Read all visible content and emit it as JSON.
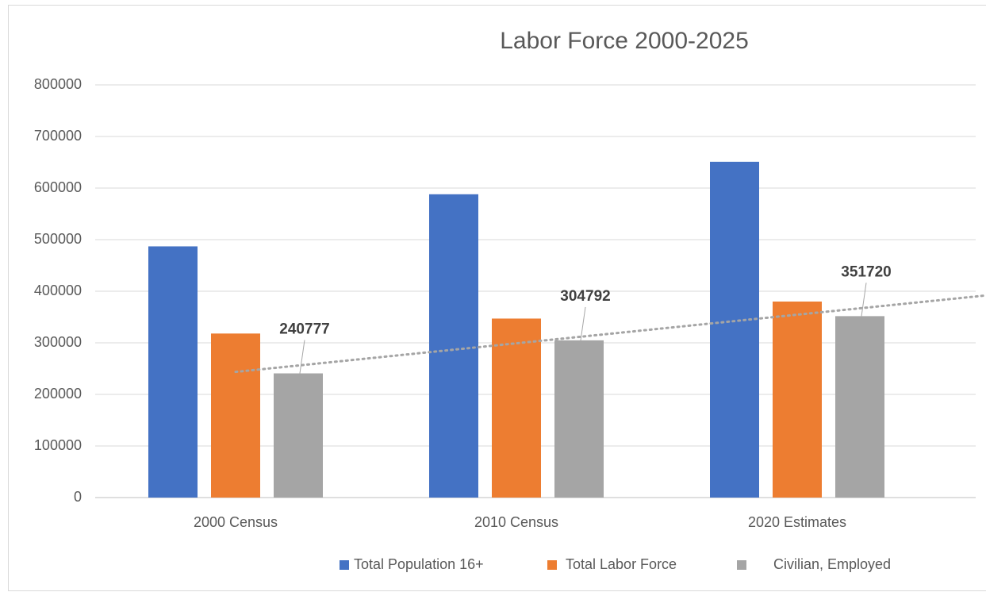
{
  "chart_data": {
    "type": "bar",
    "title": "Labor Force 2000-2025",
    "categories": [
      "2000 Census",
      "2010 Census",
      "2020 Estimates"
    ],
    "series": [
      {
        "name": "Total Population 16+",
        "color": "#4472c4",
        "values": [
          487000,
          588000,
          651000
        ]
      },
      {
        "name": "Total Labor Force",
        "color": "#ed7d31",
        "values": [
          318000,
          347000,
          380000
        ]
      },
      {
        "name": "Civilian, Employed",
        "color": "#a5a5a5",
        "values": [
          240777,
          304792,
          351720
        ],
        "data_labels": true,
        "trendline": "linear"
      }
    ],
    "ylim": [
      0,
      800000
    ],
    "yticks": [
      0,
      100000,
      200000,
      300000,
      400000,
      500000,
      600000,
      700000,
      800000
    ],
    "grid": true,
    "legend": "bottom"
  }
}
